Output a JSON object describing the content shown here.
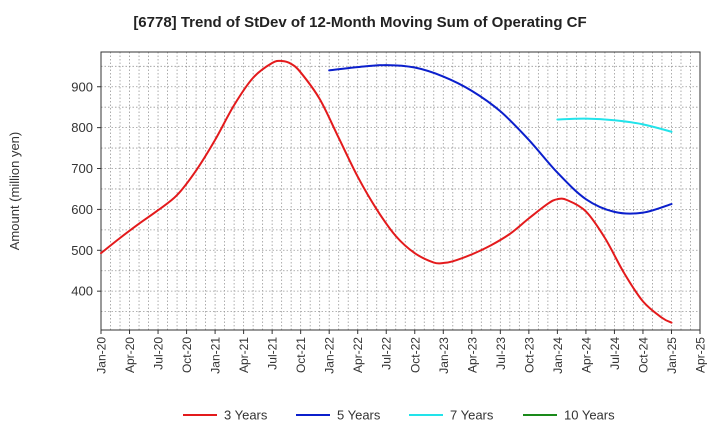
{
  "chart_data": {
    "type": "line",
    "title": "[6778]  Trend of StDev of 12-Month Moving Sum of Operating CF",
    "ylabel": "Amount (million yen)",
    "xlabel": "",
    "ylim": [
      305,
      985
    ],
    "yticks": [
      400,
      500,
      600,
      700,
      800,
      900
    ],
    "x_tick_labels": [
      "Jan-20",
      "Apr-20",
      "Jul-20",
      "Oct-20",
      "Jan-21",
      "Apr-21",
      "Jul-21",
      "Oct-21",
      "Jan-22",
      "Apr-22",
      "Jul-22",
      "Oct-22",
      "Jan-23",
      "Apr-23",
      "Jul-23",
      "Oct-23",
      "Jan-24",
      "Apr-24",
      "Jul-24",
      "Oct-24",
      "Jan-25",
      "Apr-25"
    ],
    "grid": true,
    "legend_position": "bottom",
    "series": [
      {
        "name": "3 Years",
        "color": "#e31a1c",
        "points": [
          [
            "Jan-20",
            493
          ],
          [
            "Mar-20",
            530
          ],
          [
            "May-20",
            565
          ],
          [
            "Jul-20",
            598
          ],
          [
            "Sep-20",
            635
          ],
          [
            "Nov-20",
            695
          ],
          [
            "Jan-21",
            770
          ],
          [
            "Mar-21",
            855
          ],
          [
            "May-21",
            922
          ],
          [
            "Jul-21",
            958
          ],
          [
            "Aug-21",
            963
          ],
          [
            "Sep-21",
            956
          ],
          [
            "Oct-21",
            935
          ],
          [
            "Dec-21",
            870
          ],
          [
            "Feb-22",
            775
          ],
          [
            "Apr-22",
            680
          ],
          [
            "Jun-22",
            600
          ],
          [
            "Aug-22",
            535
          ],
          [
            "Oct-22",
            493
          ],
          [
            "Dec-22",
            470
          ],
          [
            "Jan-23",
            469
          ],
          [
            "Feb-23",
            473
          ],
          [
            "Apr-23",
            490
          ],
          [
            "Jun-23",
            512
          ],
          [
            "Aug-23",
            540
          ],
          [
            "Oct-23",
            578
          ],
          [
            "Dec-23",
            614
          ],
          [
            "Jan-24",
            625
          ],
          [
            "Feb-24",
            623
          ],
          [
            "Apr-24",
            595
          ],
          [
            "Jun-24",
            530
          ],
          [
            "Aug-24",
            445
          ],
          [
            "Oct-24",
            375
          ],
          [
            "Dec-24",
            335
          ],
          [
            "Jan-25",
            323
          ]
        ]
      },
      {
        "name": "5 Years",
        "color": "#0b1fcc",
        "points": [
          [
            "Jan-22",
            940
          ],
          [
            "Apr-22",
            948
          ],
          [
            "Jul-22",
            953
          ],
          [
            "Oct-22",
            947
          ],
          [
            "Jan-23",
            925
          ],
          [
            "Apr-23",
            890
          ],
          [
            "Jul-23",
            840
          ],
          [
            "Oct-23",
            770
          ],
          [
            "Jan-24",
            690
          ],
          [
            "Apr-24",
            625
          ],
          [
            "Jul-24",
            594
          ],
          [
            "Oct-24",
            592
          ],
          [
            "Jan-25",
            613
          ]
        ]
      },
      {
        "name": "7 Years",
        "color": "#22e3ea",
        "points": [
          [
            "Jan-24",
            820
          ],
          [
            "Apr-24",
            822
          ],
          [
            "Jul-24",
            818
          ],
          [
            "Oct-24",
            808
          ],
          [
            "Jan-25",
            790
          ]
        ]
      },
      {
        "name": "10 Years",
        "color": "#1a8a1a",
        "points": []
      }
    ]
  }
}
